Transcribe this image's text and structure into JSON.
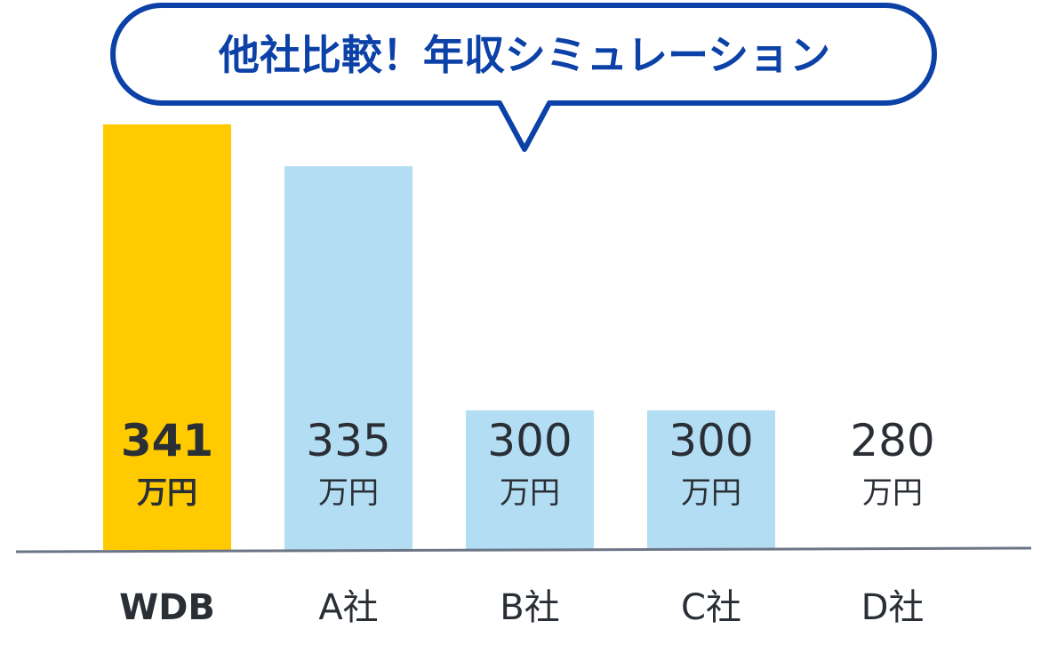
{
  "chart_data": {
    "type": "bar",
    "title": "他社比較！年収シミュレーション",
    "categories": [
      "WDB",
      "A社",
      "B社",
      "C社",
      "D社"
    ],
    "values": [
      341,
      335,
      300,
      300,
      280
    ],
    "value_labels": [
      "341",
      "335",
      "300",
      "300",
      "280"
    ],
    "unit": "万円",
    "highlight_index": 0,
    "colors": {
      "highlight": "#ffcb00",
      "bar": "#b3ddf3",
      "title": "#0c41a8",
      "bubble_border": "#0c41a8",
      "axis": "#6b7585",
      "text": "#2a2f36"
    },
    "grid": false,
    "legend": "none"
  }
}
